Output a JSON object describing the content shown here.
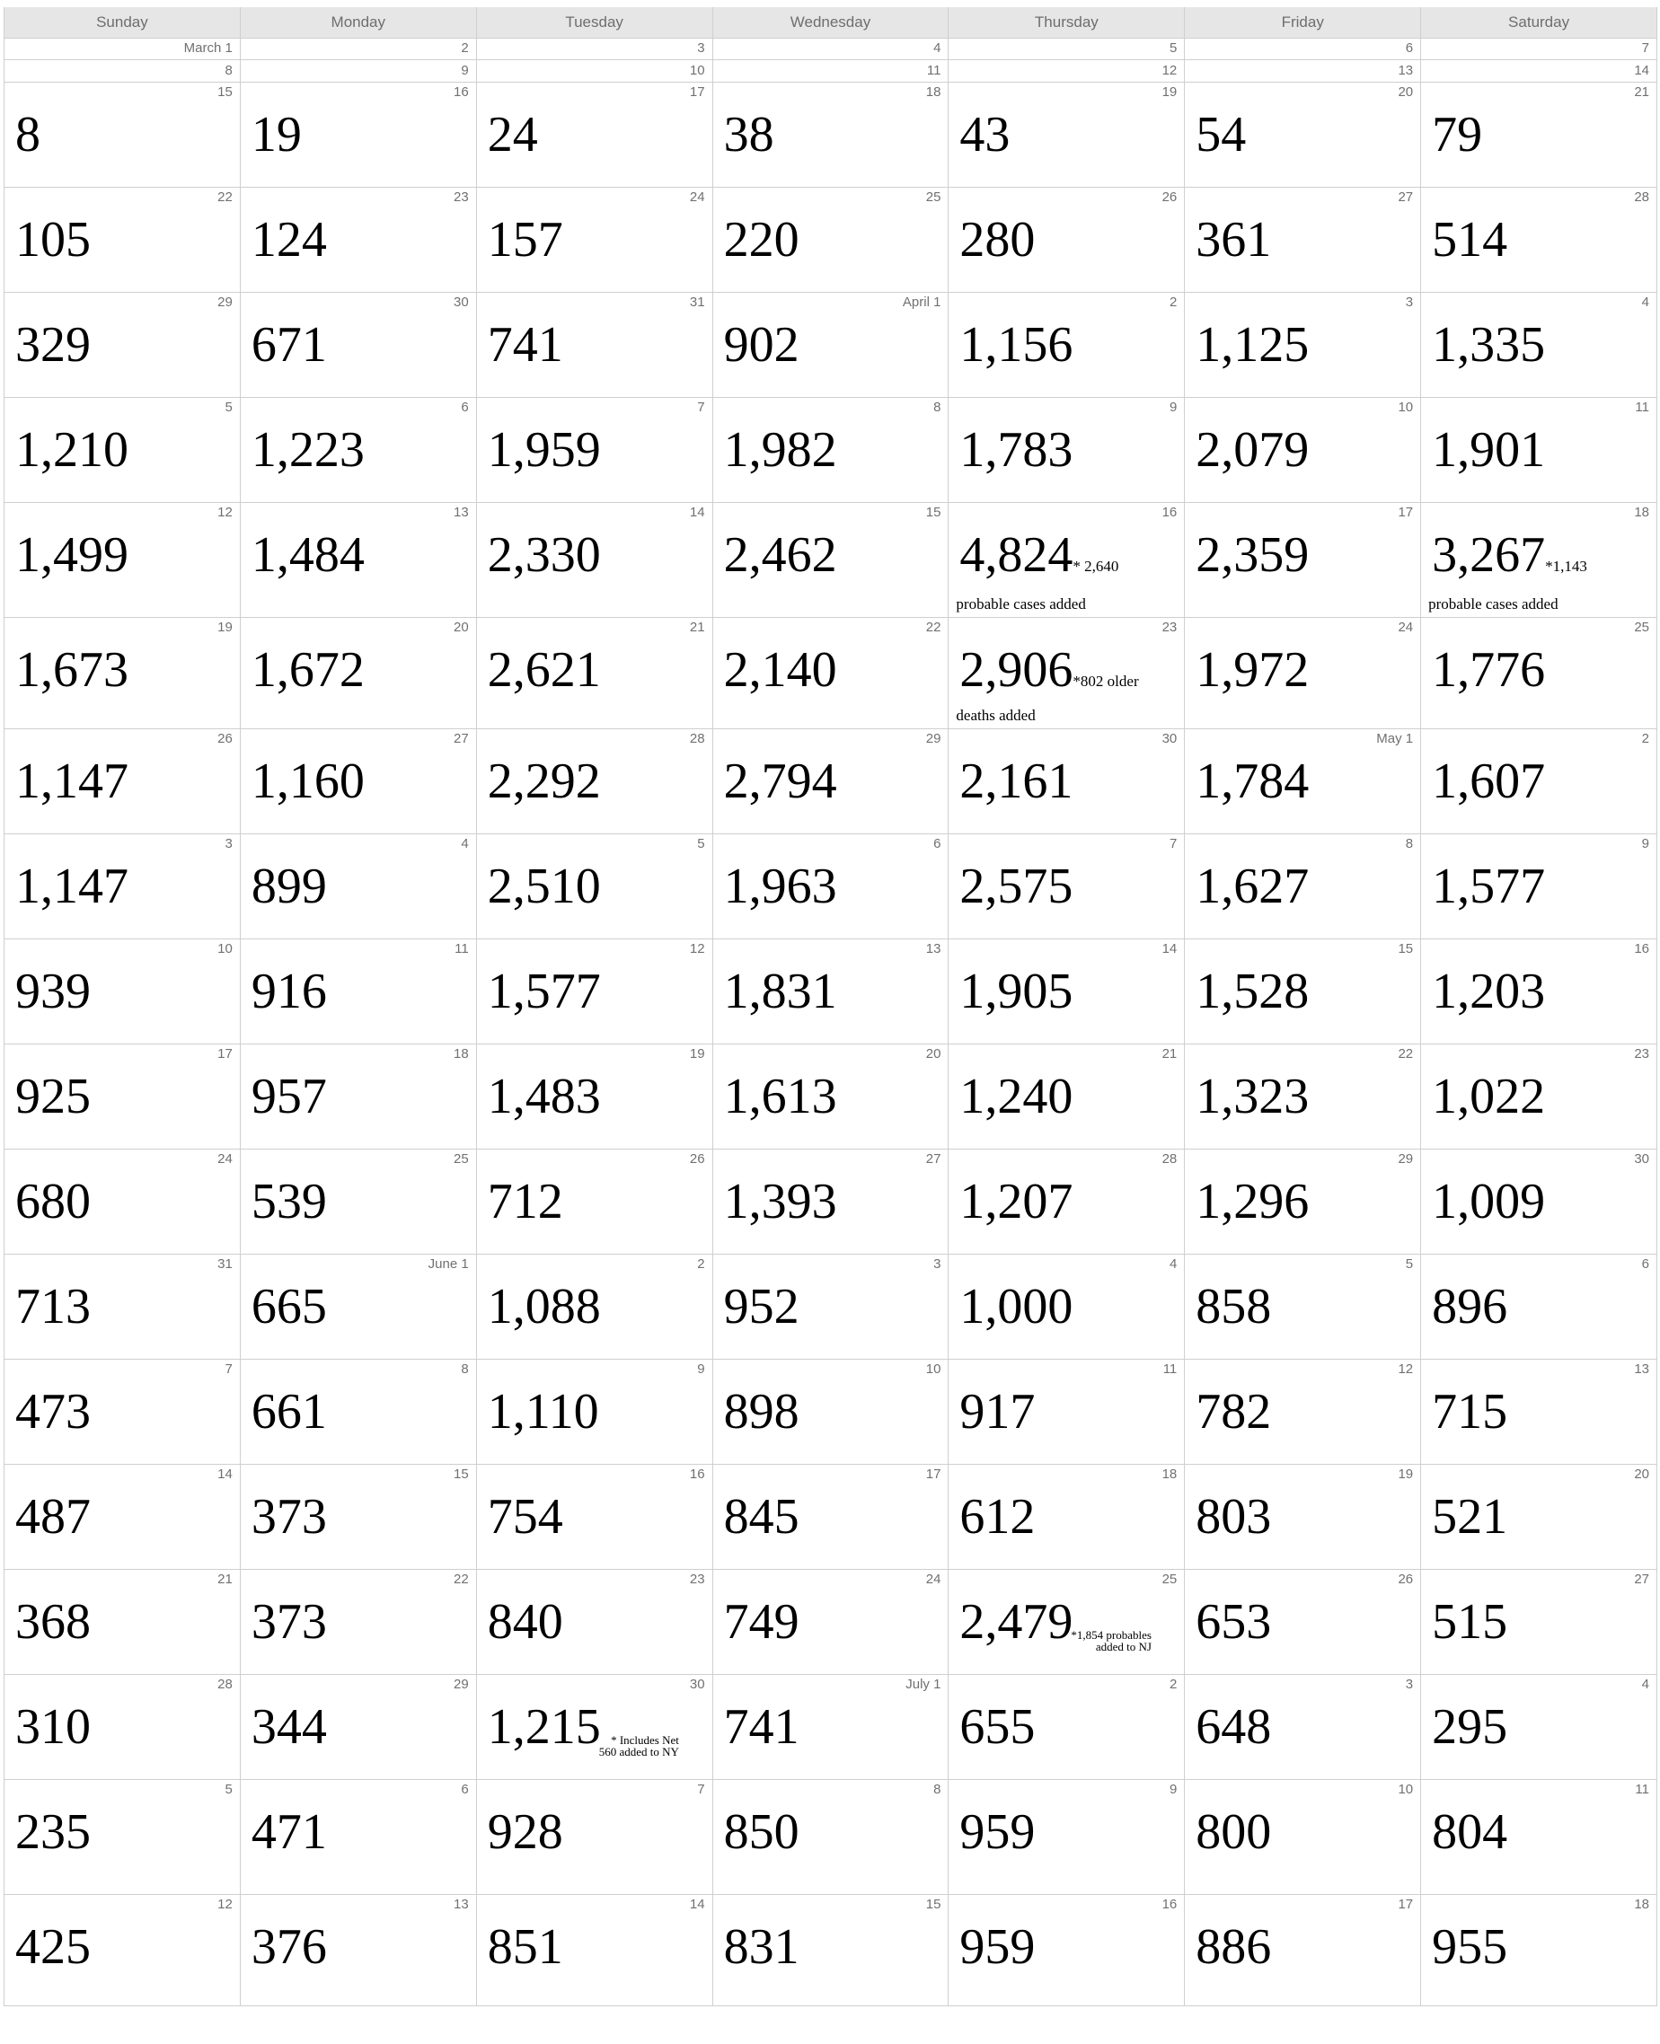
{
  "weekdays": [
    "Sunday",
    "Monday",
    "Tuesday",
    "Wednesday",
    "Thursday",
    "Friday",
    "Saturday"
  ],
  "mini_rows": [
    [
      "March 1",
      "2",
      "3",
      "4",
      "5",
      "6",
      "7"
    ],
    [
      "8",
      "9",
      "10",
      "11",
      "12",
      "13",
      "14"
    ]
  ],
  "weeks": [
    [
      {
        "d": "15",
        "v": "8"
      },
      {
        "d": "16",
        "v": "19"
      },
      {
        "d": "17",
        "v": "24"
      },
      {
        "d": "18",
        "v": "38"
      },
      {
        "d": "19",
        "v": "43"
      },
      {
        "d": "20",
        "v": "54"
      },
      {
        "d": "21",
        "v": "79"
      }
    ],
    [
      {
        "d": "22",
        "v": "105"
      },
      {
        "d": "23",
        "v": "124"
      },
      {
        "d": "24",
        "v": "157"
      },
      {
        "d": "25",
        "v": "220"
      },
      {
        "d": "26",
        "v": "280"
      },
      {
        "d": "27",
        "v": "361"
      },
      {
        "d": "28",
        "v": "514"
      }
    ],
    [
      {
        "d": "29",
        "v": "329"
      },
      {
        "d": "30",
        "v": "671"
      },
      {
        "d": "31",
        "v": "741"
      },
      {
        "d": "April 1",
        "v": "902"
      },
      {
        "d": "2",
        "v": "1,156"
      },
      {
        "d": "3",
        "v": "1,125"
      },
      {
        "d": "4",
        "v": "1,335"
      }
    ],
    [
      {
        "d": "5",
        "v": "1,210"
      },
      {
        "d": "6",
        "v": "1,223"
      },
      {
        "d": "7",
        "v": "1,959"
      },
      {
        "d": "8",
        "v": "1,982"
      },
      {
        "d": "9",
        "v": "1,783"
      },
      {
        "d": "10",
        "v": "2,079"
      },
      {
        "d": "11",
        "v": "1,901"
      }
    ],
    [
      {
        "d": "12",
        "v": "1,499"
      },
      {
        "d": "13",
        "v": "1,484"
      },
      {
        "d": "14",
        "v": "2,330"
      },
      {
        "d": "15",
        "v": "2,462"
      },
      {
        "d": "16",
        "v": "4,824",
        "ni": "* 2,640",
        "nl": "probable cases added"
      },
      {
        "d": "17",
        "v": "2,359"
      },
      {
        "d": "18",
        "v": "3,267",
        "ni": "*1,143",
        "nl": "probable cases added"
      }
    ],
    [
      {
        "d": "19",
        "v": "1,673"
      },
      {
        "d": "20",
        "v": "1,672"
      },
      {
        "d": "21",
        "v": "2,621"
      },
      {
        "d": "22",
        "v": "2,140"
      },
      {
        "d": "23",
        "v": "2,906",
        "ni": "*802 older",
        "nl": "deaths added"
      },
      {
        "d": "24",
        "v": "1,972"
      },
      {
        "d": "25",
        "v": "1,776"
      }
    ],
    [
      {
        "d": "26",
        "v": "1,147"
      },
      {
        "d": "27",
        "v": "1,160"
      },
      {
        "d": "28",
        "v": "2,292"
      },
      {
        "d": "29",
        "v": "2,794"
      },
      {
        "d": "30",
        "v": "2,161"
      },
      {
        "d": "May 1",
        "v": "1,784"
      },
      {
        "d": "2",
        "v": "1,607"
      }
    ],
    [
      {
        "d": "3",
        "v": "1,147"
      },
      {
        "d": "4",
        "v": "899"
      },
      {
        "d": "5",
        "v": "2,510"
      },
      {
        "d": "6",
        "v": "1,963"
      },
      {
        "d": "7",
        "v": "2,575"
      },
      {
        "d": "8",
        "v": "1,627"
      },
      {
        "d": "9",
        "v": "1,577"
      }
    ],
    [
      {
        "d": "10",
        "v": "939"
      },
      {
        "d": "11",
        "v": "916"
      },
      {
        "d": "12",
        "v": "1,577"
      },
      {
        "d": "13",
        "v": "1,831"
      },
      {
        "d": "14",
        "v": "1,905"
      },
      {
        "d": "15",
        "v": "1,528"
      },
      {
        "d": "16",
        "v": "1,203"
      }
    ],
    [
      {
        "d": "17",
        "v": "925"
      },
      {
        "d": "18",
        "v": "957"
      },
      {
        "d": "19",
        "v": "1,483"
      },
      {
        "d": "20",
        "v": "1,613"
      },
      {
        "d": "21",
        "v": "1,240"
      },
      {
        "d": "22",
        "v": "1,323"
      },
      {
        "d": "23",
        "v": "1,022"
      }
    ],
    [
      {
        "d": "24",
        "v": "680"
      },
      {
        "d": "25",
        "v": "539"
      },
      {
        "d": "26",
        "v": "712"
      },
      {
        "d": "27",
        "v": "1,393"
      },
      {
        "d": "28",
        "v": "1,207"
      },
      {
        "d": "29",
        "v": "1,296"
      },
      {
        "d": "30",
        "v": "1,009"
      }
    ],
    [
      {
        "d": "31",
        "v": "713"
      },
      {
        "d": "June 1",
        "v": "665"
      },
      {
        "d": "2",
        "v": "1,088"
      },
      {
        "d": "3",
        "v": "952"
      },
      {
        "d": "4",
        "v": "1,000"
      },
      {
        "d": "5",
        "v": "858"
      },
      {
        "d": "6",
        "v": "896"
      }
    ],
    [
      {
        "d": "7",
        "v": "473"
      },
      {
        "d": "8",
        "v": "661"
      },
      {
        "d": "9",
        "v": "1,110"
      },
      {
        "d": "10",
        "v": "898"
      },
      {
        "d": "11",
        "v": "917"
      },
      {
        "d": "12",
        "v": "782"
      },
      {
        "d": "13",
        "v": "715"
      }
    ],
    [
      {
        "d": "14",
        "v": "487"
      },
      {
        "d": "15",
        "v": "373"
      },
      {
        "d": "16",
        "v": "754"
      },
      {
        "d": "17",
        "v": "845"
      },
      {
        "d": "18",
        "v": "612"
      },
      {
        "d": "19",
        "v": "803"
      },
      {
        "d": "20",
        "v": "521"
      }
    ],
    [
      {
        "d": "21",
        "v": "368"
      },
      {
        "d": "22",
        "v": "373"
      },
      {
        "d": "23",
        "v": "840"
      },
      {
        "d": "24",
        "v": "749"
      },
      {
        "d": "25",
        "v": "2,479",
        "ns": "*1,854 probables\nadded to NJ"
      },
      {
        "d": "26",
        "v": "653"
      },
      {
        "d": "27",
        "v": "515"
      }
    ],
    [
      {
        "d": "28",
        "v": "310"
      },
      {
        "d": "29",
        "v": "344"
      },
      {
        "d": "30",
        "v": "1,215",
        "ns": "* Includes Net\n560 added to NY"
      },
      {
        "d": "July 1",
        "v": "741"
      },
      {
        "d": "2",
        "v": "655"
      },
      {
        "d": "3",
        "v": "648"
      },
      {
        "d": "4",
        "v": "295"
      }
    ],
    [
      {
        "d": "5",
        "v": "235"
      },
      {
        "d": "6",
        "v": "471"
      },
      {
        "d": "7",
        "v": "928"
      },
      {
        "d": "8",
        "v": "850"
      },
      {
        "d": "9",
        "v": "959"
      },
      {
        "d": "10",
        "v": "800"
      },
      {
        "d": "11",
        "v": "804"
      }
    ],
    [
      {
        "d": "12",
        "v": "425"
      },
      {
        "d": "13",
        "v": "376"
      },
      {
        "d": "14",
        "v": "851"
      },
      {
        "d": "15",
        "v": "831"
      },
      {
        "d": "16",
        "v": "959"
      },
      {
        "d": "17",
        "v": "886"
      },
      {
        "d": "18",
        "v": "955"
      }
    ]
  ]
}
